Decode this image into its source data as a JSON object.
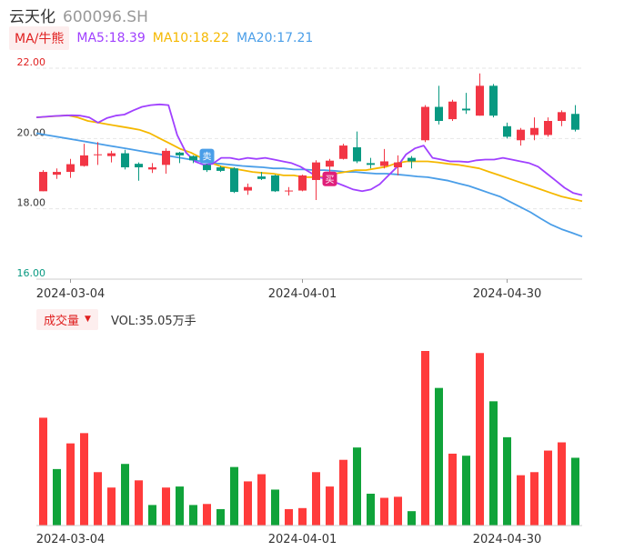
{
  "header": {
    "name": "云天化",
    "code": "600096.SH"
  },
  "ma_legend": {
    "badge": "MA/牛熊",
    "ma5": "MA5:18.39",
    "ma10": "MA10:18.22",
    "ma20": "MA20:17.21"
  },
  "volume_legend": {
    "badge": "成交量",
    "arrow": "▼",
    "value": "VOL:35.05万手"
  },
  "markers": {
    "buy": "买",
    "sell": "卖"
  },
  "colors": {
    "up": "#f23645",
    "down": "#089981",
    "vol_up": "#ff3b3b",
    "vol_down": "#10a33a",
    "ma5": "#a040ff",
    "ma10": "#f5b800",
    "ma20": "#4a9ee8",
    "ytick_top": "#e02020",
    "ytick_mid": "#333333",
    "ytick_bottom": "#089981"
  },
  "chart_data": [
    {
      "type": "candlestick",
      "y_ticks": [
        "22.00",
        "20.00",
        "18.00",
        "16.00"
      ],
      "ylim": [
        16,
        22
      ],
      "x_tick_labels": [
        {
          "index": 2,
          "label": "2024-03-04"
        },
        {
          "index": 19,
          "label": "2024-04-01"
        },
        {
          "index": 34,
          "label": "2024-04-30"
        }
      ],
      "candles": [
        {
          "o": 18.5,
          "c": 19.05,
          "h": 19.1,
          "l": 18.5
        },
        {
          "o": 18.97,
          "c": 19.05,
          "h": 19.15,
          "l": 18.85
        },
        {
          "o": 19.05,
          "c": 19.27,
          "h": 19.42,
          "l": 18.88
        },
        {
          "o": 19.22,
          "c": 19.52,
          "h": 19.85,
          "l": 19.2
        },
        {
          "o": 19.55,
          "c": 19.55,
          "h": 19.9,
          "l": 19.25
        },
        {
          "o": 19.5,
          "c": 19.58,
          "h": 19.65,
          "l": 19.32
        },
        {
          "o": 19.58,
          "c": 19.18,
          "h": 19.68,
          "l": 19.12
        },
        {
          "o": 19.28,
          "c": 19.18,
          "h": 19.32,
          "l": 18.8
        },
        {
          "o": 19.12,
          "c": 19.18,
          "h": 19.3,
          "l": 19.02
        },
        {
          "o": 19.25,
          "c": 19.65,
          "h": 19.72,
          "l": 19.0
        },
        {
          "o": 19.6,
          "c": 19.52,
          "h": 19.62,
          "l": 19.3
        },
        {
          "o": 19.5,
          "c": 19.38,
          "h": 19.52,
          "l": 19.3
        },
        {
          "o": 19.25,
          "c": 19.1,
          "h": 19.28,
          "l": 19.05
        },
        {
          "o": 19.18,
          "c": 19.08,
          "h": 19.22,
          "l": 19.05
        },
        {
          "o": 19.15,
          "c": 18.48,
          "h": 19.18,
          "l": 18.45
        },
        {
          "o": 18.52,
          "c": 18.62,
          "h": 18.72,
          "l": 18.4
        },
        {
          "o": 18.92,
          "c": 18.85,
          "h": 19.05,
          "l": 18.82
        },
        {
          "o": 18.95,
          "c": 18.5,
          "h": 18.97,
          "l": 18.48
        },
        {
          "o": 18.5,
          "c": 18.52,
          "h": 18.62,
          "l": 18.38
        },
        {
          "o": 18.52,
          "c": 18.95,
          "h": 18.97,
          "l": 18.5
        },
        {
          "o": 18.82,
          "c": 19.32,
          "h": 19.38,
          "l": 18.25
        },
        {
          "o": 19.2,
          "c": 19.37,
          "h": 19.42,
          "l": 19.05
        },
        {
          "o": 19.42,
          "c": 19.8,
          "h": 19.85,
          "l": 19.4
        },
        {
          "o": 19.75,
          "c": 19.35,
          "h": 20.2,
          "l": 19.3
        },
        {
          "o": 19.3,
          "c": 19.25,
          "h": 19.45,
          "l": 19.15
        },
        {
          "o": 19.22,
          "c": 19.35,
          "h": 19.7,
          "l": 19.15
        },
        {
          "o": 19.18,
          "c": 19.32,
          "h": 19.52,
          "l": 18.95
        },
        {
          "o": 19.45,
          "c": 19.35,
          "h": 19.5,
          "l": 19.15
        },
        {
          "o": 19.95,
          "c": 20.9,
          "h": 20.95,
          "l": 19.9
        },
        {
          "o": 20.9,
          "c": 20.5,
          "h": 21.5,
          "l": 20.4
        },
        {
          "o": 20.55,
          "c": 21.05,
          "h": 21.1,
          "l": 20.5
        },
        {
          "o": 20.85,
          "c": 20.8,
          "h": 21.3,
          "l": 20.7
        },
        {
          "o": 20.65,
          "c": 21.5,
          "h": 21.85,
          "l": 20.65
        },
        {
          "o": 21.5,
          "c": 20.65,
          "h": 21.55,
          "l": 20.6
        },
        {
          "o": 20.35,
          "c": 20.05,
          "h": 20.45,
          "l": 20.0
        },
        {
          "o": 19.95,
          "c": 20.25,
          "h": 20.3,
          "l": 19.8
        },
        {
          "o": 20.1,
          "c": 20.3,
          "h": 20.6,
          "l": 19.95
        },
        {
          "o": 20.1,
          "c": 20.5,
          "h": 20.6,
          "l": 20.05
        },
        {
          "o": 20.5,
          "c": 20.75,
          "h": 20.8,
          "l": 20.35
        },
        {
          "o": 20.7,
          "c": 20.25,
          "h": 20.95,
          "l": 20.2
        }
      ],
      "ma5": [
        20.6,
        20.62,
        20.64,
        20.65,
        20.66,
        20.65,
        20.6,
        20.45,
        20.58,
        20.65,
        20.68,
        20.8,
        20.9,
        20.95,
        20.97,
        20.95,
        20.1,
        19.6,
        19.35,
        19.25,
        19.28,
        19.45,
        19.45,
        19.4,
        19.45,
        19.42,
        19.45,
        19.4,
        19.35,
        19.3,
        19.2,
        19.05,
        18.9,
        18.85,
        18.75,
        18.65,
        18.55,
        18.5,
        18.55,
        18.7,
        18.95,
        19.2,
        19.55,
        19.72,
        19.8,
        19.45,
        19.4,
        19.35,
        19.35,
        19.33,
        19.38,
        19.4,
        19.4,
        19.45,
        19.4,
        19.35,
        19.3,
        19.2,
        19.0,
        18.8,
        18.6,
        18.45,
        18.39
      ],
      "ma10": [
        20.6,
        20.62,
        20.64,
        20.66,
        20.6,
        20.5,
        20.45,
        20.4,
        20.35,
        20.3,
        20.25,
        20.15,
        20.0,
        19.85,
        19.7,
        19.6,
        19.45,
        19.3,
        19.2,
        19.15,
        19.1,
        19.05,
        19.02,
        19.0,
        18.95,
        18.95,
        18.9,
        18.9,
        18.92,
        19.0,
        19.05,
        19.1,
        19.1,
        19.15,
        19.2,
        19.3,
        19.35,
        19.35,
        19.35,
        19.32,
        19.28,
        19.25,
        19.2,
        19.15,
        19.05,
        18.95,
        18.85,
        18.75,
        18.65,
        18.55,
        18.45,
        18.35,
        18.28,
        18.22
      ],
      "ma20": [
        20.15,
        20.1,
        20.05,
        20.0,
        19.95,
        19.9,
        19.85,
        19.8,
        19.75,
        19.7,
        19.65,
        19.6,
        19.55,
        19.5,
        19.45,
        19.4,
        19.35,
        19.3,
        19.28,
        19.25,
        19.22,
        19.2,
        19.18,
        19.15,
        19.15,
        19.12,
        19.12,
        19.1,
        19.1,
        19.08,
        19.05,
        19.05,
        19.02,
        19.0,
        19.0,
        18.98,
        18.95,
        18.92,
        18.9,
        18.85,
        18.8,
        18.72,
        18.65,
        18.55,
        18.45,
        18.35,
        18.2,
        18.05,
        17.9,
        17.72,
        17.55,
        17.42,
        17.32,
        17.21
      ]
    },
    {
      "type": "bar",
      "series_name": "VOL",
      "values": [
        105,
        55,
        80,
        90,
        52,
        37,
        60,
        44,
        20,
        37,
        38,
        20,
        21,
        16,
        57,
        43,
        50,
        35,
        16,
        17,
        52,
        38,
        64,
        76,
        31,
        27,
        28,
        14,
        170,
        134,
        70,
        68,
        168,
        121,
        86,
        49,
        52,
        73,
        81,
        66
      ],
      "up": [
        1,
        0,
        1,
        1,
        1,
        1,
        0,
        1,
        0,
        1,
        0,
        0,
        1,
        0,
        0,
        1,
        1,
        0,
        1,
        1,
        1,
        1,
        1,
        0,
        0,
        1,
        1,
        0,
        1,
        0,
        1,
        0,
        1,
        0,
        0,
        1,
        1,
        1,
        1,
        0
      ]
    }
  ]
}
